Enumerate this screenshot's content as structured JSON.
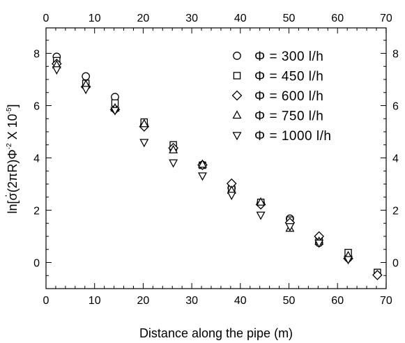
{
  "chart_data": {
    "type": "scatter",
    "xlabel": "Distance along the pipe (m)",
    "ylabel": "ln[σ̇(2πR)Φ⁻² X 10⁻⁵]",
    "ylabel_parts": {
      "prefix": "ln[",
      "sigma": "σ",
      "dot": "·",
      "mid": "(2πR)Φ",
      "phi_exp": "-2",
      "times": " X 10",
      "ten_exp": "-5",
      "suffix": "]"
    },
    "xlim": [
      0,
      70
    ],
    "ylim": [
      -1,
      9.2
    ],
    "x_ticks": [
      0,
      10,
      20,
      30,
      40,
      50,
      60,
      70
    ],
    "y_ticks": [
      0,
      2,
      4,
      6,
      8
    ],
    "legend_position": "top-right",
    "series": [
      {
        "name": "Φ = 300 l/h",
        "marker": "circle",
        "x": [
          2.2,
          8.2,
          14.2,
          20.2,
          26.2,
          32.2,
          38.2,
          44.2,
          50.2,
          56.2,
          62.2
        ],
        "y": [
          7.87,
          7.12,
          6.33,
          5.25,
          4.35,
          3.73,
          2.85,
          2.27,
          1.68,
          0.75,
          0.17
        ]
      },
      {
        "name": "Φ = 450 l/h",
        "marker": "square",
        "x": [
          2.2,
          8.2,
          14.2,
          20.2,
          26.2,
          32.2,
          38.2,
          44.2,
          50.2,
          56.2,
          62.2,
          68.2
        ],
        "y": [
          7.72,
          6.85,
          6.1,
          5.37,
          4.5,
          3.72,
          2.8,
          2.3,
          1.62,
          0.88,
          0.38,
          -0.38
        ]
      },
      {
        "name": "Φ = 600 l/h",
        "marker": "diamond",
        "x": [
          2.2,
          8.2,
          14.2,
          20.2,
          26.2,
          32.2,
          38.2,
          44.2,
          50.2,
          56.2,
          62.2,
          68.2
        ],
        "y": [
          7.6,
          6.72,
          5.85,
          5.2,
          4.38,
          3.73,
          3.02,
          2.22,
          1.52,
          1.0,
          0.15,
          -0.48
        ]
      },
      {
        "name": "Φ = 750 l/h",
        "marker": "triangle-up",
        "x": [
          2.2,
          8.2,
          14.2,
          20.2,
          26.2,
          32.2,
          38.2,
          44.2,
          50.2,
          56.2,
          62.2
        ],
        "y": [
          7.55,
          6.8,
          5.9,
          5.3,
          4.3,
          3.75,
          2.75,
          2.3,
          1.3,
          0.8,
          0.25
        ]
      },
      {
        "name": "Φ = 1000 l/h",
        "marker": "triangle-down",
        "x": [
          2.2,
          8.2,
          14.2,
          20.2,
          26.2,
          32.2,
          38.2,
          44.2,
          50.2,
          56.2,
          62.2
        ],
        "y": [
          7.38,
          6.63,
          5.82,
          4.6,
          3.82,
          3.32,
          2.58,
          1.82,
          1.38,
          0.75,
          0.12
        ]
      }
    ]
  }
}
